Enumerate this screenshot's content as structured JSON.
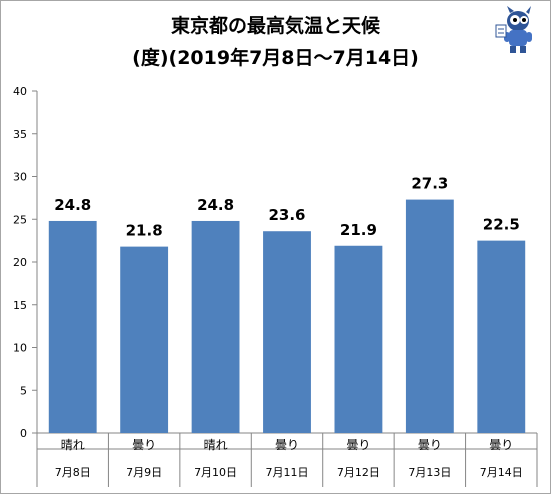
{
  "chart_data": {
    "type": "bar",
    "title": "東京都の最高気温と天候",
    "subtitle": "(度)(2019年7月8日〜7月14日)",
    "categories": [
      "7月8日",
      "7月9日",
      "7月10日",
      "7月11日",
      "7月12日",
      "7月13日",
      "7月14日"
    ],
    "weather": [
      "晴れ",
      "曇り",
      "晴れ",
      "曇り",
      "曇り",
      "曇り",
      "曇り"
    ],
    "values": [
      24.8,
      21.8,
      24.8,
      23.6,
      21.9,
      27.3,
      22.5
    ],
    "data_labels": [
      "24.8",
      "21.8",
      "24.8",
      "23.6",
      "21.9",
      "27.3",
      "22.5"
    ],
    "ylim": [
      0,
      40
    ],
    "yticks": [
      "0",
      "5",
      "10",
      "15",
      "20",
      "25",
      "30",
      "35",
      "40"
    ],
    "bar_color": "#4f81bd",
    "grid": false,
    "legend": "none"
  }
}
